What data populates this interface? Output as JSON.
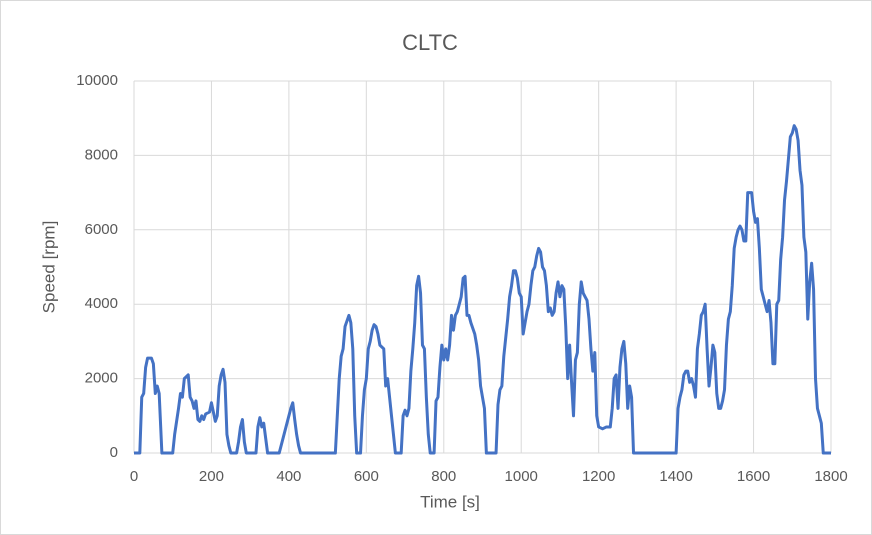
{
  "chart_data": {
    "type": "line",
    "title": "CLTC",
    "x_label": "Time [s]",
    "y_label": "Speed [rpm]",
    "x": [
      0,
      15,
      20,
      25,
      30,
      35,
      45,
      50,
      55,
      60,
      65,
      72,
      100,
      105,
      115,
      120,
      125,
      130,
      135,
      140,
      145,
      150,
      155,
      160,
      165,
      170,
      175,
      180,
      185,
      195,
      200,
      205,
      210,
      215,
      220,
      225,
      230,
      235,
      240,
      245,
      250,
      265,
      270,
      275,
      280,
      285,
      290,
      315,
      320,
      325,
      330,
      335,
      340,
      345,
      375,
      385,
      395,
      405,
      410,
      415,
      420,
      425,
      430,
      520,
      525,
      530,
      535,
      540,
      545,
      550,
      555,
      560,
      565,
      570,
      575,
      585,
      590,
      595,
      600,
      605,
      610,
      615,
      620,
      625,
      630,
      635,
      645,
      650,
      655,
      660,
      665,
      670,
      675,
      690,
      695,
      700,
      705,
      710,
      715,
      720,
      725,
      730,
      735,
      740,
      745,
      750,
      755,
      760,
      765,
      775,
      780,
      785,
      790,
      795,
      800,
      805,
      810,
      815,
      820,
      825,
      830,
      835,
      840,
      845,
      850,
      855,
      860,
      865,
      870,
      880,
      885,
      890,
      895,
      900,
      905,
      910,
      935,
      940,
      945,
      950,
      955,
      960,
      965,
      970,
      975,
      980,
      985,
      990,
      995,
      1000,
      1005,
      1010,
      1015,
      1020,
      1025,
      1030,
      1035,
      1040,
      1045,
      1050,
      1055,
      1060,
      1065,
      1070,
      1075,
      1080,
      1085,
      1090,
      1095,
      1100,
      1105,
      1110,
      1115,
      1120,
      1125,
      1130,
      1135,
      1140,
      1145,
      1150,
      1155,
      1160,
      1165,
      1170,
      1175,
      1180,
      1185,
      1190,
      1195,
      1200,
      1210,
      1220,
      1230,
      1235,
      1240,
      1245,
      1250,
      1255,
      1260,
      1265,
      1270,
      1275,
      1280,
      1285,
      1290,
      1400,
      1405,
      1410,
      1415,
      1420,
      1425,
      1430,
      1435,
      1440,
      1445,
      1450,
      1455,
      1460,
      1465,
      1470,
      1475,
      1480,
      1485,
      1490,
      1495,
      1500,
      1505,
      1510,
      1515,
      1520,
      1525,
      1530,
      1535,
      1540,
      1545,
      1550,
      1555,
      1560,
      1565,
      1570,
      1575,
      1580,
      1585,
      1590,
      1595,
      1600,
      1605,
      1610,
      1615,
      1620,
      1625,
      1630,
      1635,
      1640,
      1645,
      1650,
      1655,
      1660,
      1665,
      1670,
      1675,
      1680,
      1685,
      1690,
      1695,
      1700,
      1705,
      1710,
      1715,
      1720,
      1725,
      1730,
      1735,
      1740,
      1745,
      1750,
      1755,
      1760,
      1765,
      1770,
      1775,
      1780,
      1800
    ],
    "series": [
      {
        "name": "Speed",
        "color": "#4472c4",
        "values": [
          0,
          0,
          1500,
          1600,
          2300,
          2550,
          2550,
          2400,
          1600,
          1800,
          1600,
          0,
          0,
          500,
          1200,
          1600,
          1500,
          2000,
          2050,
          2100,
          1500,
          1400,
          1200,
          1400,
          900,
          850,
          1000,
          900,
          1050,
          1100,
          1350,
          1100,
          850,
          1000,
          1800,
          2100,
          2250,
          1900,
          500,
          200,
          0,
          0,
          300,
          700,
          900,
          300,
          0,
          0,
          700,
          950,
          700,
          800,
          400,
          0,
          0,
          400,
          800,
          1200,
          1350,
          900,
          500,
          200,
          0,
          0,
          1000,
          2000,
          2600,
          2800,
          3400,
          3550,
          3700,
          3500,
          2800,
          1000,
          0,
          0,
          1000,
          1700,
          2000,
          2800,
          3000,
          3300,
          3450,
          3400,
          3200,
          2900,
          2800,
          1800,
          2000,
          1500,
          1000,
          500,
          0,
          0,
          1000,
          1150,
          1000,
          1200,
          2200,
          2800,
          3500,
          4500,
          4750,
          4300,
          2900,
          2800,
          1500,
          500,
          0,
          0,
          1400,
          1500,
          2300,
          2900,
          2500,
          2800,
          2500,
          2900,
          3700,
          3300,
          3700,
          3800,
          4000,
          4200,
          4700,
          4750,
          3700,
          3700,
          3500,
          3200,
          2900,
          2500,
          1800,
          1500,
          1200,
          0,
          0,
          1300,
          1700,
          1800,
          2600,
          3100,
          3600,
          4200,
          4500,
          4900,
          4900,
          4700,
          4300,
          4200,
          3200,
          3500,
          3800,
          4000,
          4500,
          4900,
          5000,
          5300,
          5500,
          5400,
          5000,
          4900,
          4500,
          3800,
          3900,
          3700,
          3800,
          4300,
          4600,
          4200,
          4500,
          4400,
          3400,
          2000,
          2900,
          1900,
          1000,
          2500,
          2700,
          4000,
          4600,
          4300,
          4200,
          4100,
          3600,
          2800,
          2200,
          2700,
          1000,
          700,
          650,
          700,
          700,
          1200,
          2000,
          2100,
          1200,
          2300,
          2800,
          3000,
          2400,
          1200,
          1800,
          1500,
          0,
          0,
          1200,
          1500,
          1700,
          2100,
          2200,
          2200,
          1900,
          2000,
          1800,
          1500,
          2800,
          3200,
          3700,
          3800,
          4000,
          2800,
          1800,
          2300,
          2900,
          2700,
          1600,
          1200,
          1200,
          1400,
          1700,
          2900,
          3600,
          3800,
          4500,
          5500,
          5800,
          6000,
          6100,
          6000,
          5700,
          5700,
          7000,
          7000,
          7000,
          6500,
          6200,
          6300,
          5500,
          4400,
          4200,
          4000,
          3800,
          4100,
          3500,
          2400,
          2400,
          4000,
          4100,
          5200,
          5800,
          6800,
          7300,
          7900,
          8500,
          8600,
          8800,
          8700,
          8400,
          7600,
          7200,
          5800,
          5400,
          3600,
          4600,
          5100,
          4400,
          2000,
          1200,
          1000,
          800,
          0,
          0
        ]
      }
    ],
    "xlim": [
      0,
      1800
    ],
    "xticks": [
      0,
      200,
      400,
      600,
      800,
      1000,
      1200,
      1400,
      1600,
      1800
    ],
    "ylim": [
      0,
      10000
    ],
    "yticks": [
      0,
      2000,
      4000,
      6000,
      8000,
      10000
    ],
    "grid": true
  }
}
